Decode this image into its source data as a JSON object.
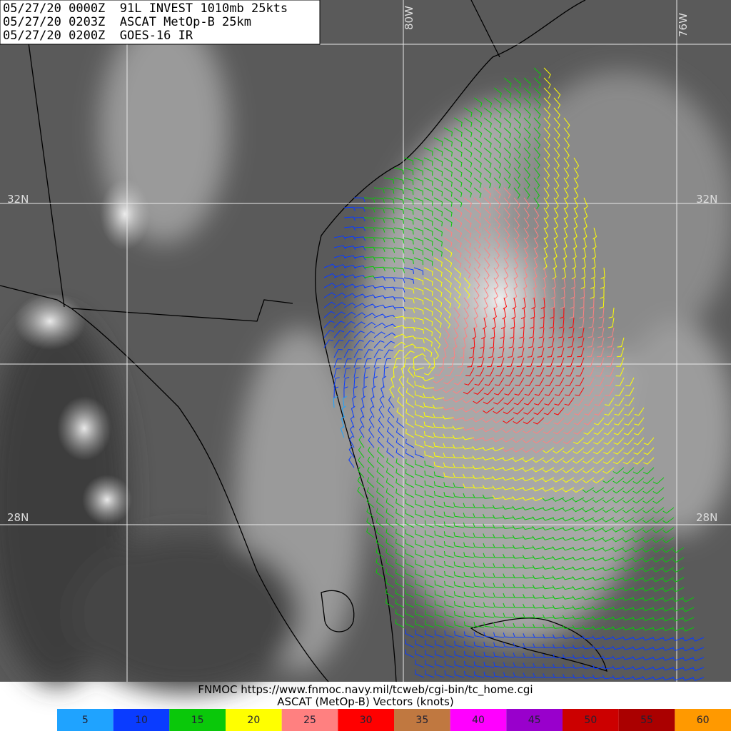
{
  "header": {
    "lines": [
      "05/27/20 0000Z  91L INVEST 1010mb 25kts",
      "05/27/20 0203Z  ASCAT MetOp-B 25km",
      "05/27/20 0200Z  GOES-16 IR"
    ]
  },
  "grid_labels": {
    "longitudes": [
      "80W",
      "76W"
    ],
    "latitudes": [
      "32N",
      "28N"
    ]
  },
  "footer": {
    "source": "FNMOC https://www.fnmoc.navy.mil/tcweb/cgi-bin/tc_home.cgi",
    "caption": "ASCAT (MetOp-B) Vectors (knots)"
  },
  "legend": [
    {
      "label": "5",
      "color": "#1fa3ff"
    },
    {
      "label": "10",
      "color": "#0a3cff"
    },
    {
      "label": "15",
      "color": "#0ac80a"
    },
    {
      "label": "20",
      "color": "#ffff00"
    },
    {
      "label": "25",
      "color": "#ff8080"
    },
    {
      "label": "30",
      "color": "#ff0000"
    },
    {
      "label": "35",
      "color": "#c07840"
    },
    {
      "label": "40",
      "color": "#ff00ff"
    },
    {
      "label": "45",
      "color": "#9900cc"
    },
    {
      "label": "50",
      "color": "#cc0000"
    },
    {
      "label": "55",
      "color": "#aa0000"
    },
    {
      "label": "60",
      "color": "#ff9900"
    }
  ]
}
